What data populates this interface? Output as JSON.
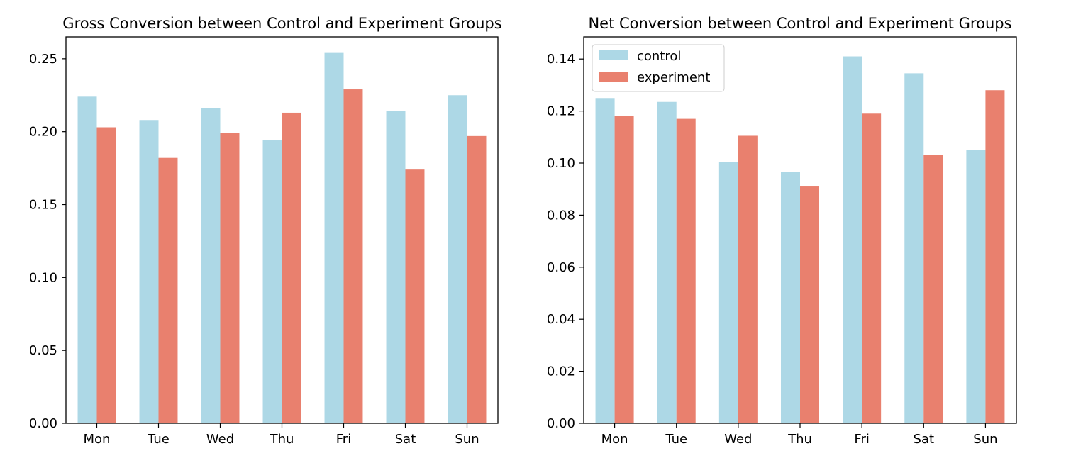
{
  "colors": {
    "control": "#add8e6",
    "experiment": "#e9806e",
    "axis": "#000000",
    "legend_border": "#cccccc"
  },
  "chart_data": [
    {
      "type": "bar",
      "title": "Gross Conversion between Control and Experiment Groups",
      "xlabel": "",
      "ylabel": "",
      "categories": [
        "Mon",
        "Tue",
        "Wed",
        "Thu",
        "Fri",
        "Sat",
        "Sun"
      ],
      "series": [
        {
          "name": "control",
          "values": [
            0.224,
            0.208,
            0.216,
            0.194,
            0.254,
            0.214,
            0.225
          ]
        },
        {
          "name": "experiment",
          "values": [
            0.203,
            0.182,
            0.199,
            0.213,
            0.229,
            0.174,
            0.197
          ]
        }
      ],
      "ylim": [
        0,
        0.265
      ],
      "yticks": [
        "0.00",
        "0.05",
        "0.10",
        "0.15",
        "0.20",
        "0.25"
      ],
      "grid": false,
      "legend": "none"
    },
    {
      "type": "bar",
      "title": "Net Conversion between Control and Experiment Groups",
      "xlabel": "",
      "ylabel": "",
      "categories": [
        "Mon",
        "Tue",
        "Wed",
        "Thu",
        "Fri",
        "Sat",
        "Sun"
      ],
      "series": [
        {
          "name": "control",
          "values": [
            0.125,
            0.1235,
            0.1005,
            0.0965,
            0.141,
            0.1345,
            0.105
          ]
        },
        {
          "name": "experiment",
          "values": [
            0.118,
            0.117,
            0.1105,
            0.091,
            0.119,
            0.103,
            0.128
          ]
        }
      ],
      "ylim": [
        0,
        0.1485
      ],
      "yticks": [
        "0.00",
        "0.02",
        "0.04",
        "0.06",
        "0.08",
        "0.10",
        "0.12",
        "0.14"
      ],
      "grid": false,
      "legend": "top-left"
    }
  ]
}
